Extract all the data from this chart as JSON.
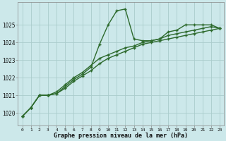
{
  "title": "Graphe pression niveau de la mer (hPa)",
  "bg_color": "#cce8ea",
  "grid_color": "#aacccc",
  "line_color": "#2d6a2d",
  "xlim": [
    -0.5,
    23.5
  ],
  "ylim": [
    1019.3,
    1026.3
  ],
  "yticks": [
    1020,
    1021,
    1022,
    1023,
    1024,
    1025
  ],
  "xticks": [
    0,
    1,
    2,
    3,
    4,
    5,
    6,
    7,
    8,
    9,
    10,
    11,
    12,
    13,
    14,
    15,
    16,
    17,
    18,
    19,
    20,
    21,
    22,
    23
  ],
  "series1": [
    1019.8,
    1020.3,
    1021.0,
    1021.0,
    1021.1,
    1021.5,
    1021.9,
    1022.2,
    1022.6,
    1023.9,
    1025.0,
    1025.8,
    1025.9,
    1024.2,
    1024.1,
    1024.1,
    1024.2,
    1024.6,
    1024.7,
    1025.0,
    1025.0,
    1025.0,
    1025.0,
    1024.8
  ],
  "series2": [
    1019.8,
    1020.3,
    1021.0,
    1021.0,
    1021.1,
    1021.4,
    1021.8,
    1022.1,
    1022.4,
    1022.8,
    1023.1,
    1023.3,
    1023.5,
    1023.7,
    1023.9,
    1024.0,
    1024.1,
    1024.2,
    1024.3,
    1024.4,
    1024.5,
    1024.6,
    1024.7,
    1024.8
  ],
  "series3": [
    1019.8,
    1020.3,
    1021.0,
    1021.0,
    1021.2,
    1021.6,
    1022.0,
    1022.3,
    1022.7,
    1023.1,
    1023.3,
    1023.5,
    1023.7,
    1023.8,
    1024.0,
    1024.1,
    1024.2,
    1024.4,
    1024.5,
    1024.6,
    1024.7,
    1024.8,
    1024.9,
    1024.8
  ]
}
